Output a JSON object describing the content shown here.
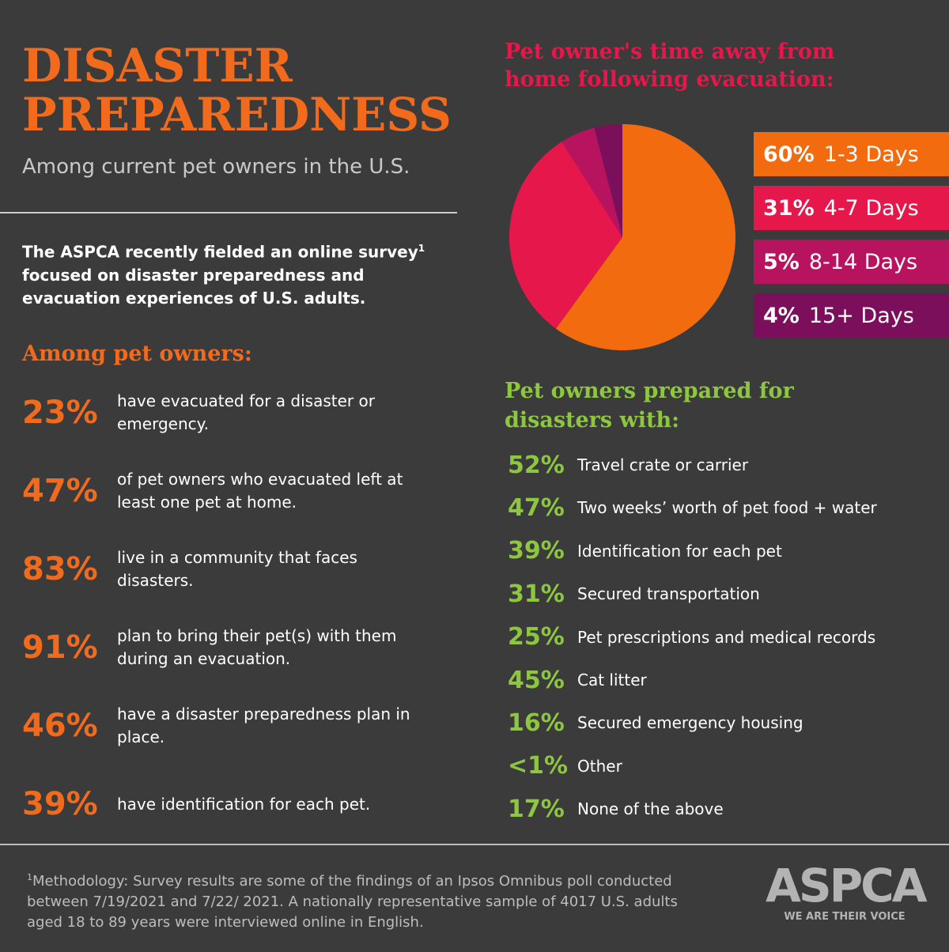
{
  "header": {
    "title": "DISASTER PREPAREDNESS",
    "subtitle": "Among current pet owners in the U.S."
  },
  "intro": {
    "text": "The ASPCA recently fielded an online survey",
    "mark": "1",
    "text_after": "focused on disaster preparedness and evacuation experiences of U.S. adults."
  },
  "owners": {
    "heading": "Among pet owners:",
    "items": [
      {
        "pct": "23%",
        "text": "have evacuated for a disaster or emergency."
      },
      {
        "pct": "47%",
        "text": "of pet owners who evacuated left at least one pet at home."
      },
      {
        "pct": "83%",
        "text": "live in a community that faces disasters."
      },
      {
        "pct": "91%",
        "text": "plan to bring their pet(s) with them during an evacuation."
      },
      {
        "pct": "46%",
        "text": "have a disaster preparedness plan in place."
      },
      {
        "pct": "39%",
        "text": "have identification for each pet."
      }
    ]
  },
  "chart_data": {
    "type": "pie",
    "title": "Pet owner's time away from home following evacuation:",
    "categories": [
      "1-3 Days",
      "4-7 Days",
      "8-14 Days",
      "15+ Days"
    ],
    "values": [
      60,
      31,
      5,
      4
    ],
    "value_labels": [
      "60%",
      "31%",
      "5%",
      "4%"
    ],
    "colors": [
      "#f26b0f",
      "#e5174b",
      "#b8135f",
      "#7b0f5b"
    ]
  },
  "prepared": {
    "heading": "Pet owners prepared for disasters with:",
    "items": [
      {
        "pct": "52%",
        "text": "Travel crate or carrier"
      },
      {
        "pct": "47%",
        "text": "Two weeks’ worth of pet food + water"
      },
      {
        "pct": "39%",
        "text": "Identification for each pet"
      },
      {
        "pct": "31%",
        "text": "Secured transportation"
      },
      {
        "pct": "25%",
        "text": "Pet prescriptions and medical records"
      },
      {
        "pct": "45%",
        "text": "Cat litter"
      },
      {
        "pct": "16%",
        "text": "Secured emergency housing"
      },
      {
        "pct": "<1%",
        "text": "Other"
      },
      {
        "pct": "17%",
        "text": "None of the above"
      }
    ]
  },
  "footnote": {
    "mark": "1",
    "text": "Methodology: Survey results are some of the findings of an Ipsos Omnibus poll conducted between 7/19/2021 and 7/22/ 2021. A nationally representative sample of 4017 U.S. adults aged 18 to 89 years were interviewed online in English."
  },
  "logo": {
    "name": "ASPCA",
    "tagline": "WE ARE THEIR VOICE"
  }
}
